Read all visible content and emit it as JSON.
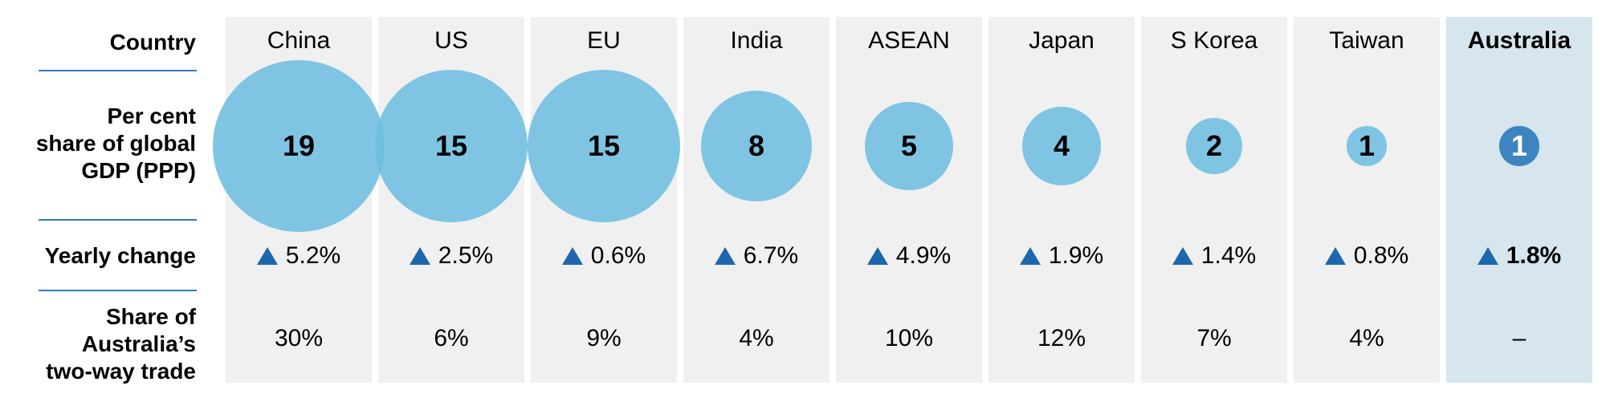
{
  "row_labels": {
    "country": [
      "Country"
    ],
    "gdp_share": [
      "Per cent",
      "share of global",
      "GDP (PPP)"
    ],
    "yearly_change": [
      "Yearly change"
    ],
    "trade_share": [
      "Share of",
      "Australia’s",
      "two-way trade"
    ]
  },
  "colors": {
    "column_background": "#f0f0f0",
    "highlight_column_background": "#d6e5ee",
    "bubble": "#6ebee0",
    "highlight_bubble": "#3d85c0",
    "up_arrow": "#1c67ad",
    "divider": "#2e7cc0"
  },
  "chart_data": {
    "type": "table",
    "title": "",
    "columns": [
      "Country",
      "Per cent share of global GDP (PPP)",
      "Yearly change",
      "Share of Australia’s two-way trade"
    ],
    "highlight": "Australia",
    "rows": [
      {
        "country": "China",
        "gdp_share": 19,
        "gdp_label": "19",
        "change_direction": "up",
        "change": "5.2%",
        "trade_share": "30%"
      },
      {
        "country": "US",
        "gdp_share": 15,
        "gdp_label": "15",
        "change_direction": "up",
        "change": "2.5%",
        "trade_share": "6%"
      },
      {
        "country": "EU",
        "gdp_share": 15,
        "gdp_label": "15",
        "change_direction": "up",
        "change": "0.6%",
        "trade_share": "9%"
      },
      {
        "country": "India",
        "gdp_share": 8,
        "gdp_label": "8",
        "change_direction": "up",
        "change": "6.7%",
        "trade_share": "4%"
      },
      {
        "country": "ASEAN",
        "gdp_share": 5,
        "gdp_label": "5",
        "change_direction": "up",
        "change": "4.9%",
        "trade_share": "10%"
      },
      {
        "country": "Japan",
        "gdp_share": 4,
        "gdp_label": "4",
        "change_direction": "up",
        "change": "1.9%",
        "trade_share": "12%"
      },
      {
        "country": "S Korea",
        "gdp_share": 2,
        "gdp_label": "2",
        "change_direction": "up",
        "change": "1.4%",
        "trade_share": "7%"
      },
      {
        "country": "Taiwan",
        "gdp_share": 1,
        "gdp_label": "1",
        "change_direction": "up",
        "change": "0.8%",
        "trade_share": "4%"
      },
      {
        "country": "Australia",
        "gdp_share": 1,
        "gdp_label": "1",
        "change_direction": "up",
        "change": "1.8%",
        "trade_share": "–"
      }
    ]
  }
}
